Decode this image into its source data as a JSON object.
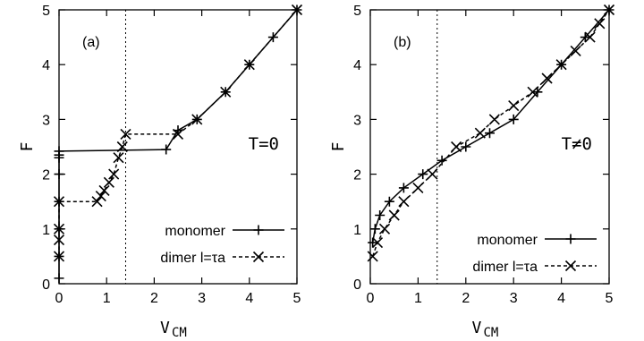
{
  "chart_data": [
    {
      "type": "line",
      "panel_label": "(a)",
      "annotation": "T=0",
      "xlabel": "V",
      "xlabel_sub": "CM",
      "ylabel": "F",
      "xlim": [
        0,
        5
      ],
      "ylim": [
        0,
        5
      ],
      "xticks": [
        0,
        1,
        2,
        3,
        4,
        5
      ],
      "yticks": [
        0,
        1,
        2,
        3,
        4,
        5
      ],
      "vline_x": 1.4,
      "legend_position": "bottom-right",
      "series": [
        {
          "name": "monomer",
          "style": "solid",
          "marker": "plus",
          "x": [
            0,
            0,
            0,
            0,
            0,
            0,
            0,
            0,
            2.25,
            2.5,
            2.9,
            3.5,
            4.0,
            4.5,
            5.0
          ],
          "y": [
            0.1,
            0.5,
            1.0,
            1.5,
            2.0,
            2.3,
            2.35,
            2.42,
            2.45,
            2.8,
            3.0,
            3.5,
            4.0,
            4.5,
            5.0
          ]
        },
        {
          "name": "dimer l=τa",
          "style": "dashed",
          "marker": "x",
          "x": [
            0,
            0,
            0,
            0,
            0.8,
            0.88,
            0.95,
            1.05,
            1.15,
            1.25,
            1.33,
            1.4,
            2.5,
            2.9,
            3.5,
            4.0,
            5.0
          ],
          "y": [
            0.5,
            0.8,
            1.0,
            1.5,
            1.5,
            1.6,
            1.7,
            1.85,
            2.0,
            2.3,
            2.5,
            2.73,
            2.73,
            3.0,
            3.5,
            4.0,
            5.0
          ]
        }
      ]
    },
    {
      "type": "line",
      "panel_label": "(b)",
      "annotation": "T≠0",
      "xlabel": "V",
      "xlabel_sub": "CM",
      "ylabel": "F",
      "xlim": [
        0,
        5
      ],
      "ylim": [
        0,
        5
      ],
      "xticks": [
        0,
        1,
        2,
        3,
        4,
        5
      ],
      "yticks": [
        0,
        1,
        2,
        3,
        4,
        5
      ],
      "vline_x": 1.4,
      "legend_position": "bottom-right",
      "series": [
        {
          "name": "monomer",
          "style": "solid",
          "marker": "plus",
          "x": [
            0.05,
            0.1,
            0.2,
            0.4,
            0.7,
            1.1,
            1.5,
            2.0,
            2.5,
            3.0,
            3.5,
            4.0,
            4.5,
            5.0
          ],
          "y": [
            0.75,
            1.0,
            1.25,
            1.5,
            1.75,
            2.0,
            2.25,
            2.5,
            2.75,
            3.0,
            3.5,
            4.0,
            4.5,
            5.0
          ]
        },
        {
          "name": "dimer l=τa",
          "style": "dashed",
          "marker": "x",
          "x": [
            0.05,
            0.15,
            0.3,
            0.5,
            0.7,
            1.0,
            1.3,
            1.8,
            2.3,
            2.6,
            3.0,
            3.4,
            3.7,
            4.0,
            4.3,
            4.6,
            4.8,
            5.0
          ],
          "y": [
            0.5,
            0.75,
            1.0,
            1.25,
            1.5,
            1.75,
            2.0,
            2.5,
            2.75,
            3.0,
            3.25,
            3.5,
            3.75,
            4.0,
            4.25,
            4.5,
            4.75,
            5.0
          ]
        }
      ]
    }
  ]
}
